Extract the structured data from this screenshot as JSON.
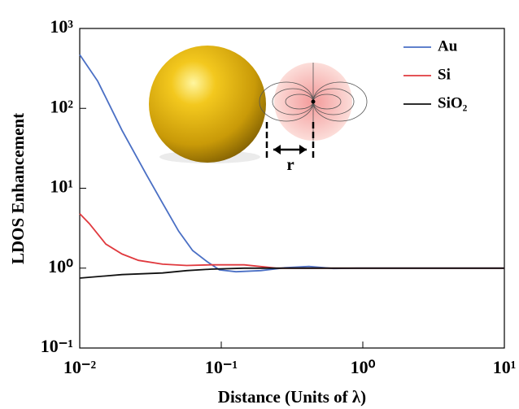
{
  "chart_data": {
    "type": "line",
    "x_label": "Distance (Units of λ)",
    "y_label": "LDOS Enhancement",
    "xscale": "log",
    "yscale": "log",
    "xlim": [
      0.01,
      10
    ],
    "ylim": [
      0.1,
      1000
    ],
    "xticks": [
      {
        "value": 0.01,
        "label": "10⁻²"
      },
      {
        "value": 0.1,
        "label": "10⁻¹"
      },
      {
        "value": 1,
        "label": "10⁰"
      },
      {
        "value": 10,
        "label": "10¹"
      }
    ],
    "yticks": [
      {
        "value": 0.1,
        "label": "10⁻¹"
      },
      {
        "value": 1,
        "label": "10⁰"
      },
      {
        "value": 10,
        "label": "10¹"
      },
      {
        "value": 100,
        "label": "10²"
      },
      {
        "value": 1000,
        "label": "10³"
      }
    ],
    "legend": "upper right",
    "annotation": "r",
    "series": [
      {
        "name": "Au",
        "color": "#4a6fc4",
        "x": [
          0.01,
          0.0134,
          0.0199,
          0.0296,
          0.0385,
          0.05,
          0.0628,
          0.0797,
          0.097,
          0.127,
          0.19,
          0.28,
          0.417,
          0.62,
          0.92,
          10
        ],
        "values": [
          470,
          219,
          53,
          14.8,
          6.5,
          2.9,
          1.66,
          1.2,
          0.95,
          0.9,
          0.93,
          1.01,
          1.05,
          0.99,
          1.0,
          1.0
        ]
      },
      {
        "name": "Si",
        "color": "#e0393e",
        "x": [
          0.01,
          0.0117,
          0.0153,
          0.0199,
          0.026,
          0.0385,
          0.057,
          0.085,
          0.145,
          0.245,
          10
        ],
        "values": [
          4.8,
          3.6,
          2.0,
          1.5,
          1.25,
          1.12,
          1.08,
          1.1,
          1.1,
          1.0,
          1.0
        ]
      },
      {
        "name": "SiO₂",
        "color": "#111111",
        "x": [
          0.01,
          0.0199,
          0.0385,
          0.057,
          0.085,
          0.145,
          10
        ],
        "values": [
          0.75,
          0.83,
          0.87,
          0.93,
          0.97,
          1.0,
          1.0
        ]
      }
    ]
  }
}
